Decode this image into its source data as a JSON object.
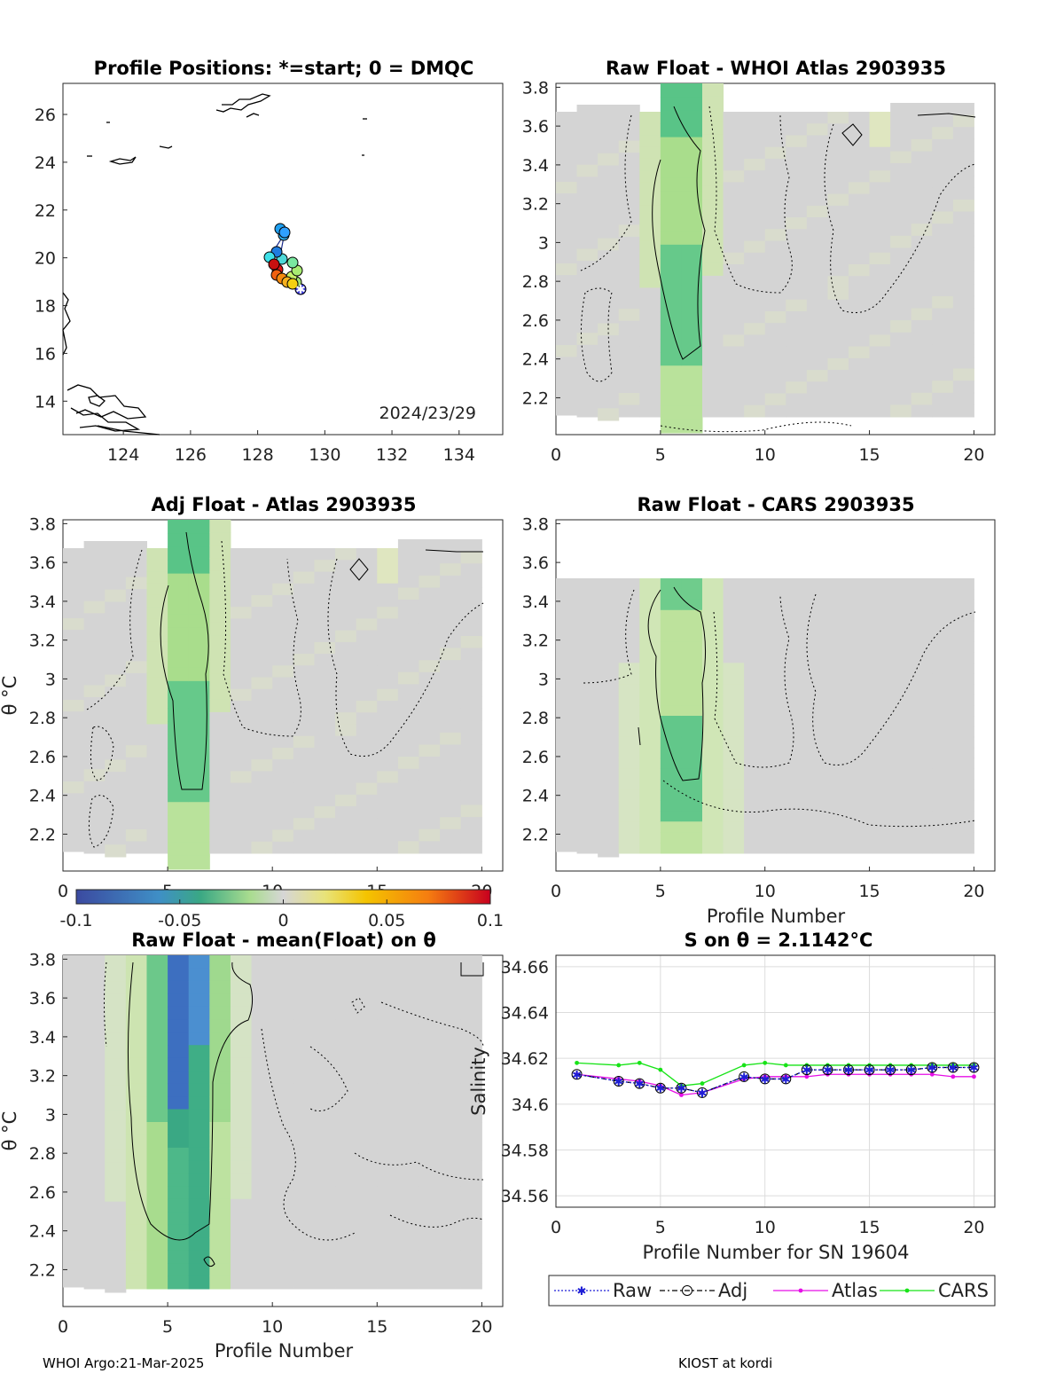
{
  "footer": {
    "left": "WHOI Argo:21-Mar-2025",
    "right": "KIOST at kordi"
  },
  "map": {
    "title": "Profile Positions: *=start; 0 = DMQC",
    "date": "2024/23/29",
    "xticks": [
      "124",
      "126",
      "128",
      "130",
      "132",
      "134"
    ],
    "yticks": [
      "14",
      "16",
      "18",
      "20",
      "22",
      "24",
      "26"
    ]
  },
  "panels": {
    "p2": {
      "title": "Raw Float - WHOI Atlas  2903935"
    },
    "p3": {
      "title": "Adj Float - Atlas  2903935",
      "ylabel": "θ °C"
    },
    "p4": {
      "title": "Raw Float - CARS  2903935",
      "xlabel": "Profile Number"
    },
    "p5": {
      "title": "Raw Float - mean(Float) on θ",
      "ylabel": "θ °C",
      "xlabel": "Profile Number"
    }
  },
  "theta_yticks": [
    "2.2",
    "2.4",
    "2.6",
    "2.8",
    "3",
    "3.2",
    "3.4",
    "3.6",
    "3.8"
  ],
  "profile_xticks": [
    "0",
    "5",
    "10",
    "15",
    "20"
  ],
  "colorbar": {
    "ticks": [
      "-0.1",
      "-0.05",
      "0",
      "0.05",
      "0.1"
    ]
  },
  "chart_data": {
    "type": "line",
    "title": "S on θ = 2.1142°C",
    "xlabel": "Profile Number for SN 19604",
    "ylabel": "Salinity",
    "xlim": [
      0,
      21
    ],
    "ylim": [
      34.555,
      34.665
    ],
    "xticks": [
      "0",
      "5",
      "10",
      "15",
      "20"
    ],
    "yticks": [
      "34.56",
      "34.58",
      "34.6",
      "34.62",
      "34.64",
      "34.66"
    ],
    "series": [
      {
        "name": "Raw",
        "color": "#1f1fd6",
        "x": [
          1,
          3,
          4,
          5,
          6,
          7,
          9,
          10,
          11,
          12,
          13,
          14,
          15,
          16,
          17,
          18,
          19,
          20
        ],
        "values": [
          34.613,
          34.61,
          34.609,
          34.607,
          34.607,
          34.605,
          34.612,
          34.611,
          34.611,
          34.615,
          34.615,
          34.615,
          34.615,
          34.615,
          34.615,
          34.616,
          34.616,
          34.616
        ]
      },
      {
        "name": "Adj",
        "color": "#000000",
        "x": [
          1,
          3,
          4,
          5,
          6,
          7,
          9,
          10,
          11,
          12,
          13,
          14,
          15,
          16,
          17,
          18,
          19,
          20
        ],
        "values": [
          34.613,
          34.61,
          34.609,
          34.607,
          34.607,
          34.605,
          34.612,
          34.611,
          34.611,
          34.615,
          34.615,
          34.615,
          34.615,
          34.615,
          34.615,
          34.616,
          34.616,
          34.616
        ]
      },
      {
        "name": "Atlas",
        "color": "#e60fe6",
        "x": [
          1,
          3,
          4,
          5,
          6,
          7,
          9,
          10,
          11,
          12,
          13,
          14,
          15,
          16,
          17,
          18,
          19,
          20
        ],
        "values": [
          34.613,
          34.611,
          34.61,
          34.608,
          34.604,
          34.605,
          34.611,
          34.612,
          34.612,
          34.612,
          34.613,
          34.613,
          34.613,
          34.613,
          34.613,
          34.613,
          34.612,
          34.612
        ]
      },
      {
        "name": "CARS",
        "color": "#17e317",
        "x": [
          1,
          3,
          4,
          5,
          6,
          7,
          9,
          10,
          11,
          12,
          13,
          14,
          15,
          16,
          17,
          18,
          19,
          20
        ],
        "values": [
          34.618,
          34.617,
          34.618,
          34.615,
          34.608,
          34.609,
          34.617,
          34.618,
          34.617,
          34.617,
          34.617,
          34.617,
          34.617,
          34.617,
          34.617,
          34.617,
          34.617,
          34.617
        ]
      }
    ]
  }
}
